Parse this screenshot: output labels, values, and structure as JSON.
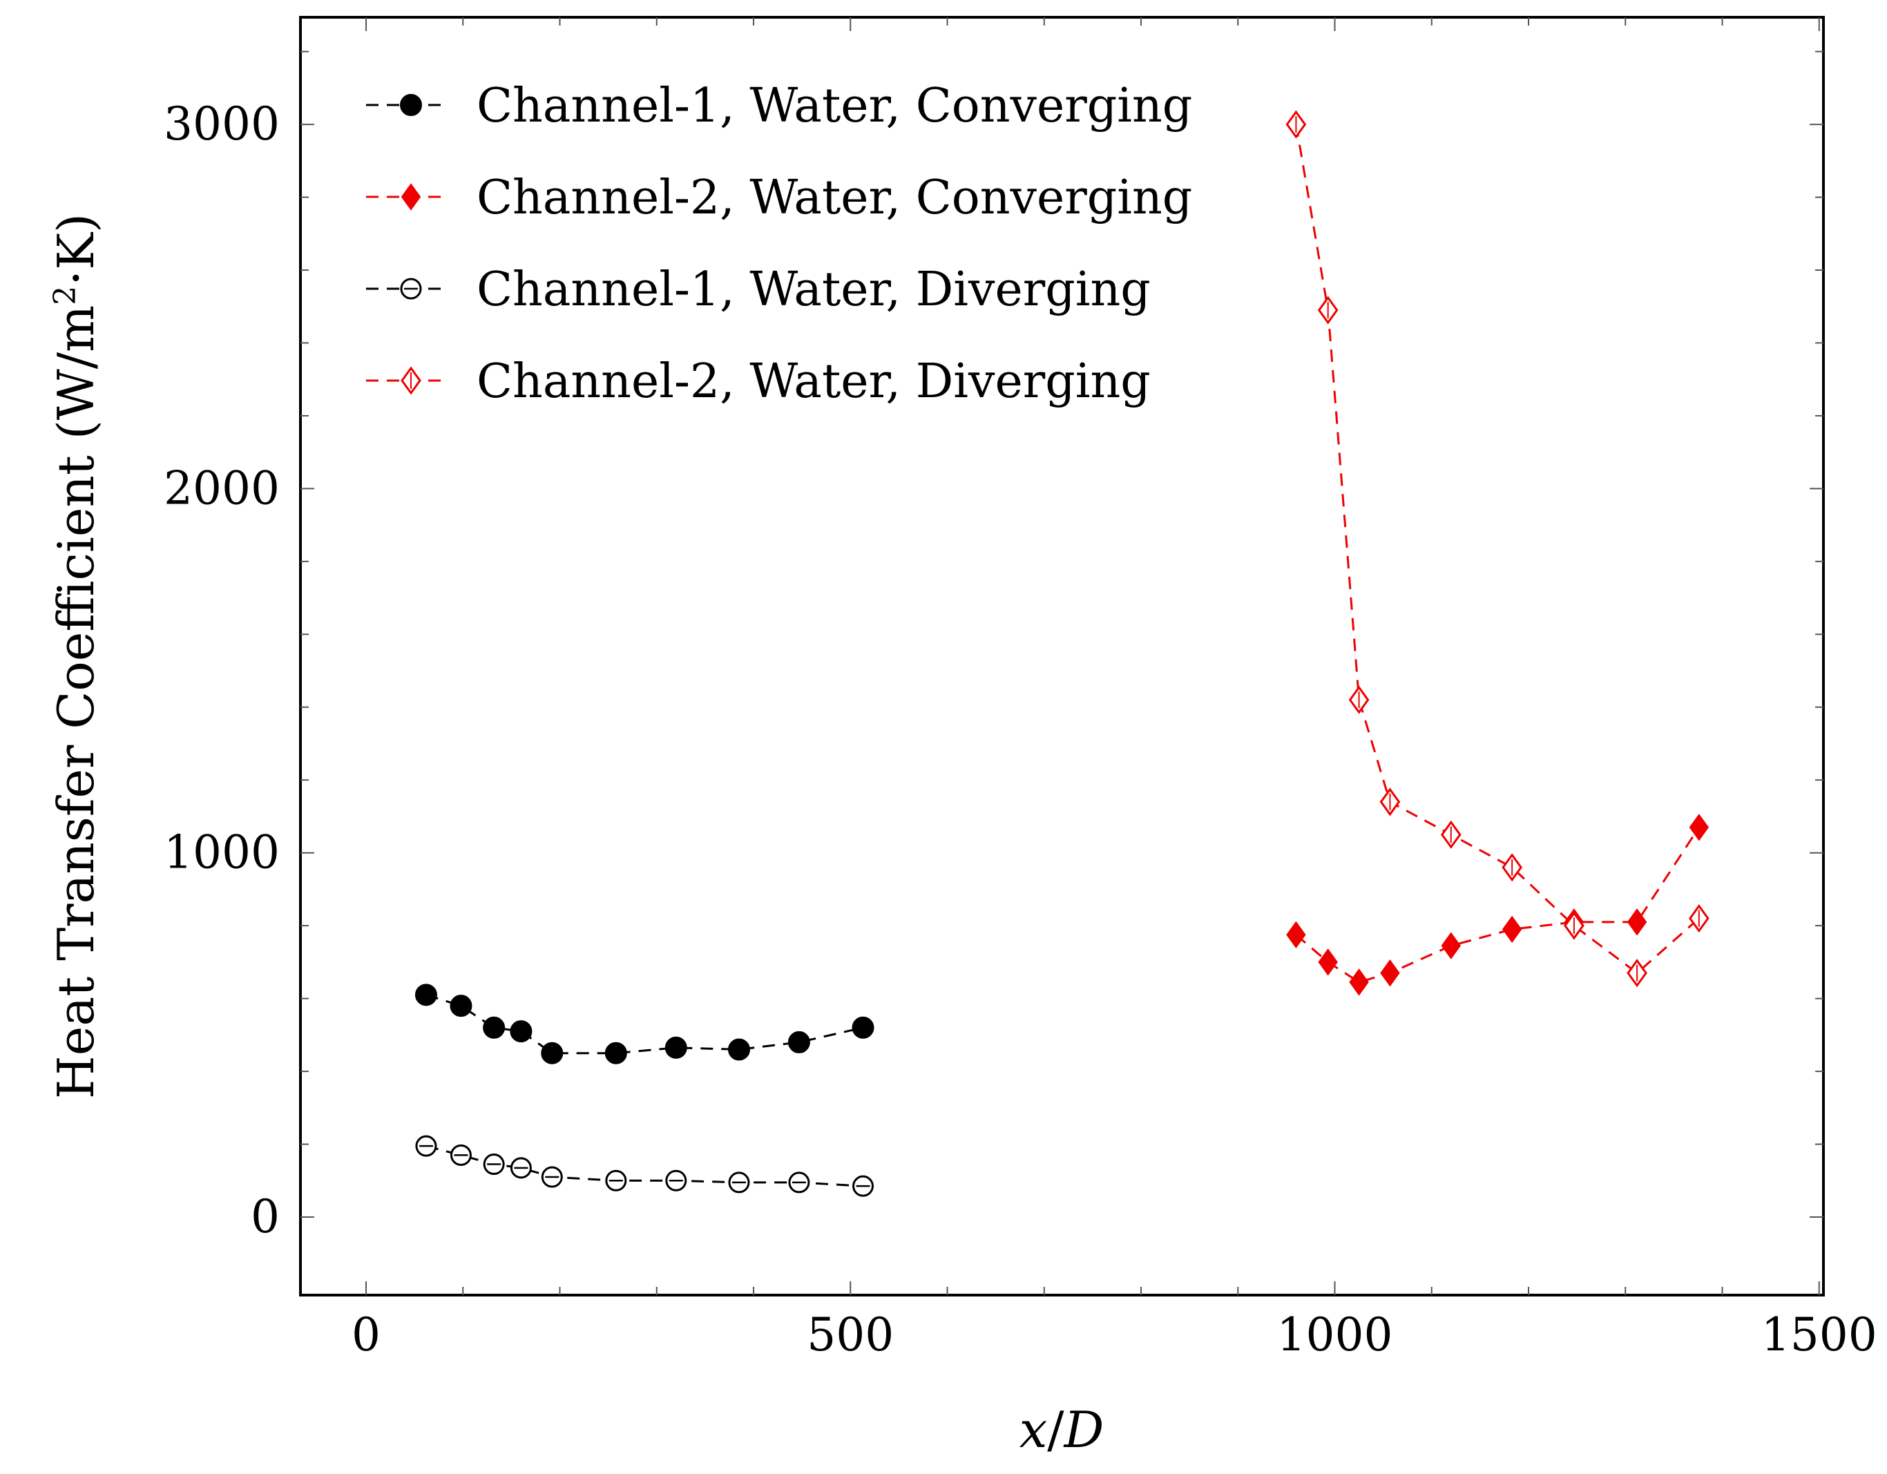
{
  "chart_data": {
    "type": "line",
    "xlabel_var": "x",
    "xlabel_sep": "/",
    "xlabel_den": "D",
    "ylabel_main": "Heat Transfer Coefficient (W/m",
    "ylabel_sup": "2",
    "ylabel_tail": "·K)",
    "xlim": [
      -130,
      1500
    ],
    "ylim": [
      -200,
      3300
    ],
    "xticks": [
      0,
      500,
      1000,
      1500
    ],
    "xtick_labels": [
      "0",
      "500",
      "1000",
      "1500"
    ],
    "yticks": [
      0,
      1000,
      2000,
      3000
    ],
    "ytick_labels": [
      "0",
      "1000",
      "2000",
      "3000"
    ],
    "grid": false,
    "legend_position": "top-left",
    "series": [
      {
        "name": "Channel-1, Water, Converging",
        "color": "#000000",
        "marker": "filled-circle",
        "x": [
          62,
          98,
          132,
          160,
          192,
          258,
          320,
          385,
          447,
          513
        ],
        "y": [
          610,
          580,
          520,
          510,
          450,
          450,
          465,
          460,
          480,
          520
        ]
      },
      {
        "name": "Channel-2, Water, Converging",
        "color": "#ee0000",
        "marker": "filled-diamond",
        "x": [
          960,
          993,
          1025,
          1057,
          1120,
          1183,
          1247,
          1312,
          1376
        ],
        "y": [
          775,
          700,
          645,
          670,
          745,
          790,
          810,
          810,
          1070
        ]
      },
      {
        "name": "Channel-1, Water, Diverging",
        "color": "#000000",
        "marker": "open-circle",
        "x": [
          62,
          98,
          132,
          160,
          192,
          258,
          320,
          385,
          447,
          513
        ],
        "y": [
          195,
          170,
          145,
          135,
          110,
          100,
          100,
          95,
          95,
          85
        ]
      },
      {
        "name": "Channel-2, Water, Diverging",
        "color": "#ee0000",
        "marker": "open-diamond",
        "x": [
          960,
          993,
          1025,
          1057,
          1120,
          1183,
          1247,
          1312,
          1376
        ],
        "y": [
          3000,
          2490,
          1420,
          1140,
          1050,
          960,
          800,
          670,
          820
        ]
      }
    ]
  }
}
